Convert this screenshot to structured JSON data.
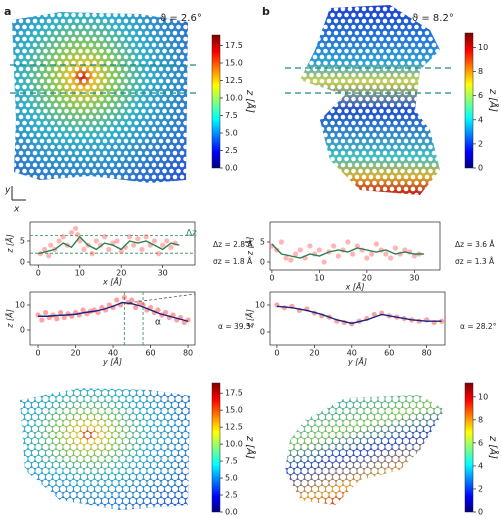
{
  "figure": {
    "panels": [
      "a",
      "b"
    ],
    "angles": [
      "ϑ = 2.6°",
      "ϑ = 8.2°"
    ],
    "axes_key": {
      "y": "y",
      "x": "x"
    }
  },
  "chart_data": [
    {
      "type": "colorbar",
      "label": "z [Å]",
      "ylim": [
        0,
        19
      ],
      "yticks": [
        {
          "value": 0,
          "label": "0.0"
        },
        2.5,
        {
          "value": 5,
          "label": "5.0"
        },
        7.5,
        {
          "value": 10,
          "label": "10.0"
        },
        12.5,
        {
          "value": 15,
          "label": "15.0"
        },
        17.5
      ]
    },
    {
      "type": "colorbar",
      "label": "z [Å]",
      "ylim": [
        0,
        11.2
      ],
      "yticks": [
        0,
        2,
        4,
        6,
        8,
        10
      ]
    },
    {
      "type": "line",
      "xlabel": "x [Å]",
      "ylabel": "z [Å]",
      "xlim": [
        -2,
        37.8
      ],
      "ylim": [
        -0.7,
        9.5
      ],
      "xticks": [
        0,
        10,
        20,
        30
      ],
      "yticks": [
        0,
        5
      ],
      "hlines": [
        6.3,
        2.1
      ],
      "marker_label": "Δz",
      "annotations": [
        "Δz = 2.8 Å",
        "σz = 1.8 Å"
      ],
      "series": [
        {
          "style": "markers",
          "color": "#ff5a5a",
          "x": [
            0.5,
            1.5,
            2.5,
            3,
            4,
            5,
            6,
            7,
            8,
            9,
            9.5,
            10,
            11,
            12,
            13,
            14,
            15,
            16,
            17,
            18,
            19,
            20,
            21,
            22,
            23,
            24,
            25,
            26,
            27,
            28,
            29,
            30,
            31,
            32,
            33
          ],
          "values": [
            2,
            3,
            1.5,
            4,
            3,
            5,
            6,
            4,
            7,
            8,
            6.5,
            5,
            3,
            4,
            2,
            5,
            4,
            6,
            3,
            4.5,
            5,
            2.5,
            3.5,
            6,
            4,
            5.5,
            3,
            6,
            4,
            5,
            2,
            4,
            5,
            3.5,
            4.5
          ]
        },
        {
          "style": "line",
          "color": "#2e7d4f",
          "x": [
            0,
            2,
            4,
            6,
            8,
            10,
            12,
            14,
            16,
            18,
            20,
            22,
            24,
            26,
            28,
            30,
            32,
            34
          ],
          "values": [
            2,
            2.5,
            3,
            4.5,
            3.5,
            6,
            4,
            3,
            4.5,
            4,
            3,
            5,
            4.5,
            5,
            4,
            3,
            4.5,
            4
          ]
        }
      ]
    },
    {
      "type": "line",
      "xlabel": "x [Å]",
      "ylabel": "z [Å]",
      "xlim": [
        -0.4,
        35.4
      ],
      "ylim": [
        -2,
        10
      ],
      "xticks": [
        0,
        10,
        20,
        30
      ],
      "yticks": [
        0,
        5
      ],
      "annotations": [
        "Δz = 3.6 Å",
        "σz = 1.3 Å"
      ],
      "series": [
        {
          "style": "markers",
          "color": "#ff5a5a",
          "x": [
            0,
            1,
            2,
            3,
            4,
            5,
            6,
            7,
            8,
            9,
            10,
            11,
            12,
            13,
            14,
            15,
            16,
            17,
            18,
            19,
            20,
            21,
            22,
            23,
            24,
            25,
            26,
            27,
            28,
            29,
            30,
            31
          ],
          "values": [
            4,
            3,
            5,
            1,
            0.5,
            2,
            3,
            1,
            4,
            2,
            3,
            0,
            2.5,
            4,
            1.5,
            3,
            5,
            2,
            4,
            3,
            1,
            2,
            4.5,
            3,
            2,
            1,
            3.5,
            2,
            3,
            2.5,
            1.5,
            2
          ]
        },
        {
          "style": "line",
          "color": "#2e7d4f",
          "x": [
            0,
            2,
            4,
            6,
            8,
            10,
            12,
            14,
            16,
            18,
            20,
            22,
            24,
            26,
            28,
            30,
            32
          ],
          "values": [
            4.5,
            2,
            1.5,
            1,
            2,
            1.5,
            2.5,
            3,
            2.5,
            3.5,
            3,
            2.5,
            3,
            2,
            2.5,
            2,
            2
          ]
        }
      ]
    },
    {
      "type": "line",
      "xlabel": "y [Å]",
      "ylabel": "z [Å]",
      "xlim": [
        -4.3,
        83.7
      ],
      "ylim": [
        -6,
        15.2
      ],
      "xticks": [
        0,
        20,
        40,
        60,
        80
      ],
      "yticks": [
        0,
        10
      ],
      "vlines": [
        46,
        56
      ],
      "marker_label": "α",
      "annotations": [
        "α = 39.5°"
      ],
      "series": [
        {
          "style": "markers",
          "color": "#ff3030",
          "x": [
            0,
            2,
            4,
            6,
            8,
            10,
            12,
            14,
            16,
            18,
            20,
            22,
            24,
            26,
            28,
            30,
            32,
            34,
            36,
            38,
            40,
            42,
            44,
            46,
            48,
            50,
            52,
            54,
            56,
            58,
            60,
            62,
            64,
            66,
            68,
            70,
            72,
            74,
            76,
            78,
            80
          ],
          "values": [
            6,
            4,
            7,
            5,
            6,
            4.5,
            7,
            5,
            6.5,
            5.5,
            7,
            6,
            8,
            6.5,
            7.5,
            8,
            7,
            9,
            8,
            10,
            9,
            12,
            10,
            13,
            11,
            12,
            9,
            11,
            10,
            8,
            9,
            7,
            8,
            6,
            7,
            5,
            6,
            4,
            5,
            3,
            4
          ]
        },
        {
          "style": "line",
          "color": "#1a237e",
          "x": [
            0,
            5,
            10,
            15,
            20,
            25,
            30,
            35,
            40,
            45,
            50,
            55,
            60,
            65,
            70,
            75,
            80
          ],
          "values": [
            5.5,
            5.5,
            5.8,
            6,
            6.3,
            7,
            7.5,
            8.3,
            9.5,
            11,
            10.5,
            9.5,
            8,
            6.5,
            5.5,
            4.5,
            3.5
          ]
        }
      ]
    },
    {
      "type": "line",
      "xlabel": "y [Å]",
      "ylabel": "z [Å]",
      "xlim": [
        -3.7,
        89.8
      ],
      "ylim": [
        -4.8,
        14.8
      ],
      "xticks": [
        0,
        20,
        40,
        60,
        80
      ],
      "yticks": [
        0,
        10
      ],
      "annotations": [
        "α = 28.2°"
      ],
      "series": [
        {
          "style": "markers",
          "color": "#ff3030",
          "x": [
            0,
            4,
            8,
            12,
            16,
            20,
            24,
            28,
            32,
            36,
            40,
            44,
            48,
            52,
            56,
            60,
            64,
            68,
            72,
            76,
            80,
            84,
            88
          ],
          "values": [
            10,
            9,
            9.5,
            8,
            8.5,
            7,
            6,
            5.5,
            4,
            3.5,
            3,
            4,
            5,
            6.5,
            7,
            6,
            5.5,
            5,
            4.5,
            4,
            4.5,
            3.5,
            4
          ]
        },
        {
          "style": "line",
          "color": "#1a237e",
          "x": [
            0,
            8,
            16,
            24,
            32,
            40,
            48,
            56,
            64,
            72,
            80,
            88
          ],
          "values": [
            9.5,
            9,
            8,
            6.5,
            4.5,
            3.2,
            4.5,
            6.5,
            5.5,
            4.5,
            4,
            4
          ]
        }
      ]
    },
    {
      "type": "colorbar",
      "label": "z [Å]",
      "ylim": [
        0,
        19
      ],
      "yticks": [
        {
          "value": 0,
          "label": "0.0"
        },
        2.5,
        {
          "value": 5,
          "label": "5.0"
        },
        7.5,
        {
          "value": 10,
          "label": "10.0"
        },
        12.5,
        {
          "value": 15,
          "label": "15.0"
        },
        17.5
      ]
    },
    {
      "type": "colorbar",
      "label": "z [Å]",
      "ylim": [
        0,
        11.2
      ],
      "yticks": [
        0,
        2,
        4,
        6,
        8,
        10
      ]
    }
  ]
}
